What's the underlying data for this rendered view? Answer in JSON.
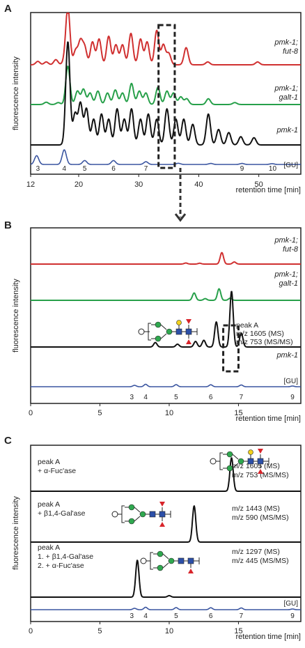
{
  "chart_data": [
    {
      "panel": "A",
      "type": "line",
      "xlabel": "retention time [min]",
      "ylabel": "fluorescence intensity",
      "xlim": [
        12,
        57
      ],
      "xticks": [
        12,
        20,
        30,
        40,
        50
      ],
      "series": [
        {
          "name": "pmk-1; fut-8",
          "label_lines": [
            "pmk-1;",
            "fut-8"
          ],
          "color": "#d03030",
          "peaks": [
            [
              13.2,
              0.06
            ],
            [
              14.6,
              0.05
            ],
            [
              16.2,
              0.09
            ],
            [
              17.6,
              0.05
            ],
            [
              18.2,
              1.0
            ],
            [
              19.5,
              0.25
            ],
            [
              20.3,
              0.4
            ],
            [
              21.0,
              0.3
            ],
            [
              22.3,
              0.4
            ],
            [
              23.4,
              0.45
            ],
            [
              25.0,
              0.5
            ],
            [
              26.2,
              0.35
            ],
            [
              27.3,
              0.35
            ],
            [
              28.7,
              0.55
            ],
            [
              30.3,
              0.45
            ],
            [
              31.4,
              0.4
            ],
            [
              33.0,
              0.6
            ],
            [
              34.1,
              0.35
            ],
            [
              35.0,
              0.2
            ],
            [
              37.9,
              0.3
            ],
            [
              41.5,
              0.05
            ],
            [
              49.8,
              0.05
            ]
          ]
        },
        {
          "name": "pmk-1; galt-1",
          "label_lines": [
            "pmk-1;",
            "galt-1"
          ],
          "color": "#27a04a",
          "peaks": [
            [
              14.6,
              0.06
            ],
            [
              16.6,
              0.05
            ],
            [
              18.2,
              1.0
            ],
            [
              19.8,
              0.35
            ],
            [
              20.8,
              0.4
            ],
            [
              21.9,
              0.3
            ],
            [
              23.2,
              0.35
            ],
            [
              24.8,
              0.3
            ],
            [
              26.1,
              0.38
            ],
            [
              27.3,
              0.3
            ],
            [
              28.8,
              0.55
            ],
            [
              30.1,
              0.35
            ],
            [
              31.2,
              0.3
            ],
            [
              33.2,
              0.45
            ],
            [
              34.7,
              0.35
            ],
            [
              35.8,
              0.3
            ],
            [
              37.0,
              0.2
            ],
            [
              38.0,
              0.15
            ],
            [
              41.6,
              0.15
            ],
            [
              46.0,
              0.05
            ]
          ]
        },
        {
          "name": "pmk-1",
          "label_lines": [
            "pmk-1"
          ],
          "color": "#111111",
          "peaks": [
            [
              18.2,
              1.0
            ],
            [
              19.4,
              0.3
            ],
            [
              20.3,
              0.4
            ],
            [
              21.3,
              0.35
            ],
            [
              22.5,
              0.25
            ],
            [
              23.8,
              0.3
            ],
            [
              25.0,
              0.25
            ],
            [
              26.4,
              0.35
            ],
            [
              27.6,
              0.25
            ],
            [
              28.8,
              0.35
            ],
            [
              30.3,
              0.25
            ],
            [
              31.6,
              0.3
            ],
            [
              33.0,
              0.25
            ],
            [
              34.7,
              0.35
            ],
            [
              36.2,
              0.25
            ],
            [
              37.5,
              0.25
            ],
            [
              39.0,
              0.2
            ],
            [
              41.6,
              0.3
            ],
            [
              43.3,
              0.15
            ],
            [
              45.0,
              0.12
            ],
            [
              47.0,
              0.08
            ],
            [
              49.2,
              0.07
            ]
          ]
        },
        {
          "name": "[GU]",
          "label_lines": [
            "[GU]"
          ],
          "color": "#3a55a0",
          "peaks": [
            [
              13.0,
              0.45
            ],
            [
              17.6,
              0.75
            ],
            [
              21.0,
              0.2
            ],
            [
              25.8,
              0.2
            ],
            [
              31.2,
              0.14
            ],
            [
              36.6,
              0.06
            ],
            [
              42.0,
              0.05
            ],
            [
              47.2,
              0.05
            ],
            [
              52.2,
              0.04
            ]
          ]
        }
      ],
      "gu_labels": [
        {
          "t": "3",
          "x": 13.2
        },
        {
          "t": "4",
          "x": 17.6
        },
        {
          "t": "5",
          "x": 21.0
        },
        {
          "t": "6",
          "x": 25.8
        },
        {
          "t": "7",
          "x": 31.2
        },
        {
          "t": "9",
          "x": 47.2
        },
        {
          "t": "10",
          "x": 52.3
        }
      ],
      "highlight_x": [
        33.3,
        36.0
      ]
    },
    {
      "panel": "B",
      "type": "line",
      "xlabel": "retention time [min]",
      "ylabel": "fluorescence intensity",
      "xlim": [
        0,
        19.5
      ],
      "xticks": [
        0,
        5,
        10,
        15
      ],
      "series": [
        {
          "name": "pmk-1; fut-8",
          "label_lines": [
            "pmk-1;",
            "fut-8"
          ],
          "color": "#d03030",
          "peaks": [
            [
              11.2,
              0.05
            ],
            [
              12.2,
              0.04
            ],
            [
              13.8,
              0.55
            ],
            [
              14.7,
              0.1
            ]
          ]
        },
        {
          "name": "pmk-1; galt-1",
          "label_lines": [
            "pmk-1;",
            "galt-1"
          ],
          "color": "#27a04a",
          "peaks": [
            [
              11.8,
              0.35
            ],
            [
              12.6,
              0.08
            ],
            [
              13.6,
              0.55
            ],
            [
              14.4,
              0.1
            ]
          ]
        },
        {
          "name": "pmk-1",
          "label_lines": [
            "pmk-1"
          ],
          "color": "#111111",
          "peaks": [
            [
              9.0,
              0.08
            ],
            [
              10.6,
              0.05
            ],
            [
              11.9,
              0.1
            ],
            [
              12.5,
              0.12
            ],
            [
              13.4,
              0.45
            ],
            [
              14.5,
              1.0
            ],
            [
              15.2,
              0.25
            ]
          ]
        },
        {
          "name": "[GU]",
          "label_lines": [
            "[GU]"
          ],
          "color": "#3a55a0",
          "peaks": [
            [
              7.5,
              0.2
            ],
            [
              8.3,
              0.35
            ],
            [
              10.5,
              0.3
            ],
            [
              13.0,
              0.28
            ],
            [
              15.2,
              0.25
            ],
            [
              18.9,
              0.1
            ]
          ]
        }
      ],
      "gu_labels": [
        {
          "t": "3",
          "x": 7.3
        },
        {
          "t": "4",
          "x": 8.3
        },
        {
          "t": "5",
          "x": 10.5
        },
        {
          "t": "6",
          "x": 13.0
        },
        {
          "t": "7",
          "x": 15.2
        },
        {
          "t": "9",
          "x": 18.9
        }
      ],
      "annotation": [
        "peak A",
        "m/z 1605 (MS)",
        "m/z 753 (MS/MS)"
      ],
      "highlight_x": [
        13.9,
        15.0
      ]
    },
    {
      "panel": "C",
      "type": "line",
      "xlabel": "retention time [min]",
      "ylabel": "fluorescence intensity",
      "xlim": [
        0,
        19.5
      ],
      "xticks": [
        0,
        5,
        10,
        15
      ],
      "series": [
        {
          "name": "peak A + α-Fuc'ase",
          "label_lines": [
            "peak A",
            "+ α-Fuc'ase"
          ],
          "color": "#111111",
          "peaks": [
            [
              14.5,
              1.0
            ]
          ],
          "ms": [
            "m/z 1605 (MS)",
            "m/z 753 (MS/MS)"
          ]
        },
        {
          "name": "peak A + β1,4-Gal'ase",
          "label_lines": [
            "peak A",
            "+ β1,4-Gal'ase"
          ],
          "color": "#111111",
          "peaks": [
            [
              11.8,
              1.0
            ]
          ],
          "ms": [
            "m/z 1443 (MS)",
            "m/z 590 (MS/MS)"
          ]
        },
        {
          "name": "peak A 1. + β1,4-Gal'ase 2. + α-Fuc'ase",
          "label_lines": [
            "peak A",
            "1. + β1,4-Gal'ase",
            "2. + α-Fuc'ase"
          ],
          "color": "#111111",
          "peaks": [
            [
              7.7,
              1.0
            ],
            [
              10.0,
              0.04
            ]
          ],
          "ms": [
            "m/z 1297 (MS)",
            "m/z 445 (MS/MS)"
          ]
        },
        {
          "name": "[GU]",
          "label_lines": [
            "[GU]"
          ],
          "color": "#3a55a0",
          "peaks": [
            [
              7.5,
              0.2
            ],
            [
              8.3,
              0.35
            ],
            [
              10.5,
              0.3
            ],
            [
              13.0,
              0.28
            ],
            [
              15.2,
              0.25
            ],
            [
              18.9,
              0.1
            ]
          ]
        }
      ],
      "gu_labels": [
        {
          "t": "3",
          "x": 7.3
        },
        {
          "t": "4",
          "x": 8.3
        },
        {
          "t": "5",
          "x": 10.5
        },
        {
          "t": "6",
          "x": 13.0
        },
        {
          "t": "7",
          "x": 15.2
        },
        {
          "t": "9",
          "x": 18.9
        }
      ]
    }
  ]
}
